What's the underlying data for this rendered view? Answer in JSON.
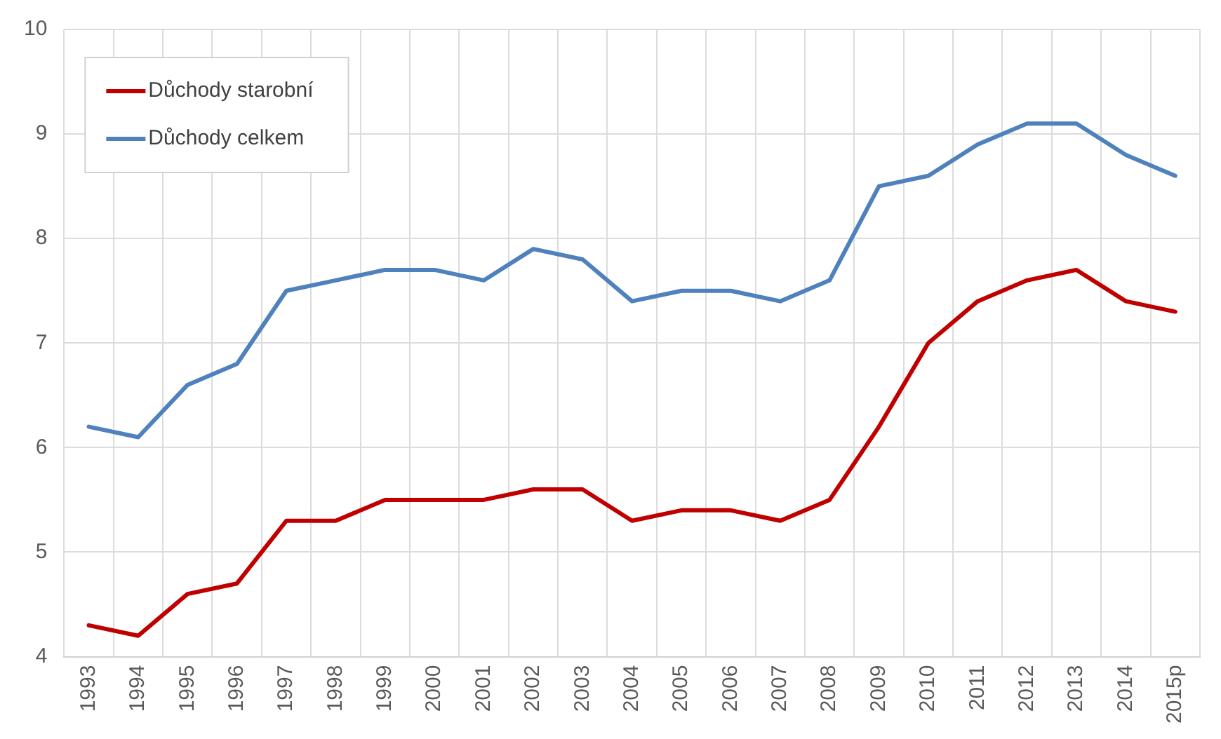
{
  "chart_data": {
    "type": "line",
    "categories": [
      "1993",
      "1994",
      "1995",
      "1996",
      "1997",
      "1998",
      "1999",
      "2000",
      "2001",
      "2002",
      "2003",
      "2004",
      "2005",
      "2006",
      "2007",
      "2008",
      "2009",
      "2010",
      "2011",
      "2012",
      "2013",
      "2014",
      "2015p"
    ],
    "series": [
      {
        "name": "Důchody starobní",
        "color": "#c00000",
        "values": [
          4.3,
          4.2,
          4.6,
          4.7,
          5.3,
          5.3,
          5.5,
          5.5,
          5.5,
          5.6,
          5.6,
          5.3,
          5.4,
          5.4,
          5.3,
          5.5,
          6.2,
          7.0,
          7.4,
          7.6,
          7.7,
          7.4,
          7.3
        ]
      },
      {
        "name": "Důchody celkem",
        "color": "#4f81bd",
        "values": [
          6.2,
          6.1,
          6.6,
          6.8,
          7.5,
          7.6,
          7.7,
          7.7,
          7.6,
          7.9,
          7.8,
          7.4,
          7.5,
          7.5,
          7.4,
          7.6,
          8.5,
          8.6,
          8.9,
          9.1,
          9.1,
          8.8,
          8.6
        ]
      }
    ],
    "ylim": [
      4,
      10
    ],
    "yticks": [
      4,
      5,
      6,
      7,
      8,
      9,
      10
    ],
    "grid": true,
    "legend": "top left",
    "marker": "none",
    "line_style": "solid"
  }
}
